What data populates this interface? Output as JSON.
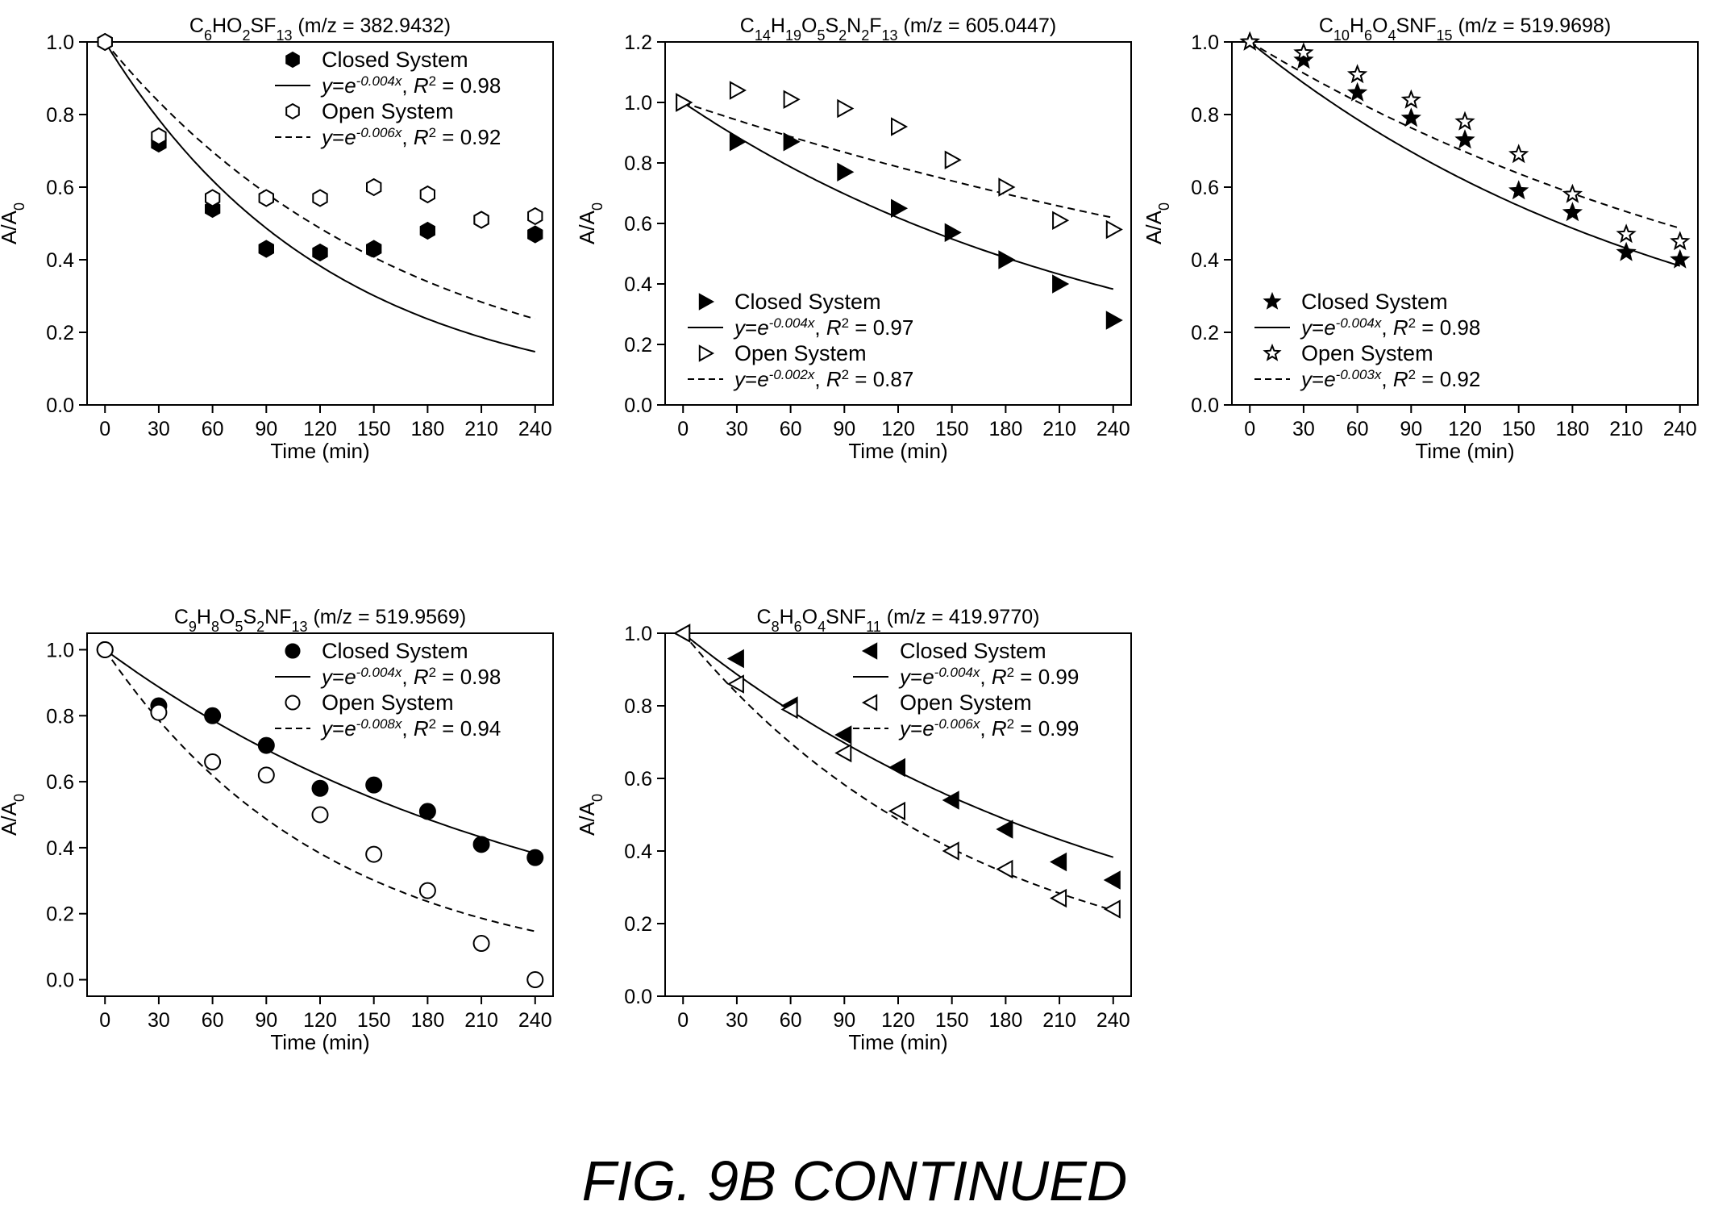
{
  "figure_caption": "FIG. 9B CONTINUED",
  "chart_data": [
    {
      "type": "scatter",
      "title": "C6HO2SF13 (m/z = 382.9432)",
      "title_parts": [
        [
          "C",
          ""
        ],
        [
          "6",
          "sub"
        ],
        [
          "HO",
          ""
        ],
        [
          "2",
          "sub"
        ],
        [
          "SF",
          ""
        ],
        [
          "13",
          "sub"
        ],
        [
          " (m/z = 382.9432)",
          ""
        ]
      ],
      "xlabel": "Time (min)",
      "ylabel": "A/A0",
      "xlim": [
        -10,
        250
      ],
      "ylim": [
        0,
        1.0
      ],
      "xticks": [
        0,
        30,
        60,
        90,
        120,
        150,
        180,
        210,
        240
      ],
      "yticks": [
        0.0,
        0.2,
        0.4,
        0.6,
        0.8,
        1.0
      ],
      "ytick_labels": [
        "0.0",
        "0.2",
        "0.4",
        "0.6",
        "0.8",
        "1.0"
      ],
      "legend_position": "top-right",
      "series": [
        {
          "name": "Closed System",
          "marker": "hexagon",
          "filled": true,
          "x": [
            0,
            30,
            60,
            90,
            120,
            150,
            180,
            210,
            240
          ],
          "y": [
            1.0,
            0.72,
            0.54,
            0.43,
            0.42,
            0.43,
            0.48,
            0.51,
            0.47
          ]
        },
        {
          "name": "Open System",
          "marker": "hexagon",
          "filled": false,
          "x": [
            0,
            30,
            60,
            90,
            120,
            150,
            180,
            210,
            240
          ],
          "y": [
            1.0,
            0.74,
            0.57,
            0.57,
            0.57,
            0.6,
            0.58,
            0.51,
            0.52
          ]
        }
      ],
      "fits": [
        {
          "k": 0.008,
          "dash": false,
          "exponent_label": "-0.004x",
          "r2_text": "= 0.98"
        },
        {
          "k": 0.006,
          "dash": true,
          "exponent_label": "-0.006x",
          "r2_text": "= 0.92"
        }
      ]
    },
    {
      "type": "scatter",
      "title": "C14H19O5S2N2F13 (m/z = 605.0447)",
      "title_parts": [
        [
          "C",
          ""
        ],
        [
          "14",
          "sub"
        ],
        [
          "H",
          ""
        ],
        [
          "19",
          "sub"
        ],
        [
          "O",
          ""
        ],
        [
          "5",
          "sub"
        ],
        [
          "S",
          ""
        ],
        [
          "2",
          "sub"
        ],
        [
          "N",
          ""
        ],
        [
          "2",
          "sub"
        ],
        [
          "F",
          ""
        ],
        [
          "13",
          "sub"
        ],
        [
          " (m/z = 605.0447)",
          ""
        ]
      ],
      "xlabel": "Time (min)",
      "ylabel": "A/A0",
      "xlim": [
        -10,
        250
      ],
      "ylim": [
        0,
        1.2
      ],
      "xticks": [
        0,
        30,
        60,
        90,
        120,
        150,
        180,
        210,
        240
      ],
      "yticks": [
        0.0,
        0.2,
        0.4,
        0.6,
        0.8,
        1.0,
        1.2
      ],
      "ytick_labels": [
        "0.0",
        "0.2",
        "0.4",
        "0.6",
        "0.8",
        "1.0",
        "1.2"
      ],
      "legend_position": "bottom-left",
      "series": [
        {
          "name": "Closed System",
          "marker": "triangle-right",
          "filled": true,
          "x": [
            0,
            30,
            60,
            90,
            120,
            150,
            180,
            210,
            240
          ],
          "y": [
            1.0,
            0.87,
            0.87,
            0.77,
            0.65,
            0.57,
            0.48,
            0.4,
            0.28
          ]
        },
        {
          "name": "Open System",
          "marker": "triangle-right",
          "filled": false,
          "x": [
            0,
            30,
            60,
            90,
            120,
            150,
            180,
            210,
            240
          ],
          "y": [
            1.0,
            1.04,
            1.01,
            0.98,
            0.92,
            0.81,
            0.72,
            0.61,
            0.58
          ]
        }
      ],
      "fits": [
        {
          "k": 0.004,
          "dash": false,
          "exponent_label": "-0.004x",
          "r2_text": "= 0.97"
        },
        {
          "k": 0.002,
          "dash": true,
          "exponent_label": "-0.002x",
          "r2_text": "= 0.87"
        }
      ]
    },
    {
      "type": "scatter",
      "title": "C10H6O4SNF15 (m/z = 519.9698)",
      "title_parts": [
        [
          "C",
          ""
        ],
        [
          "10",
          "sub"
        ],
        [
          "H",
          ""
        ],
        [
          "6",
          "sub"
        ],
        [
          "O",
          ""
        ],
        [
          "4",
          "sub"
        ],
        [
          "SNF",
          ""
        ],
        [
          "15",
          "sub"
        ],
        [
          " (m/z = 519.9698)",
          ""
        ]
      ],
      "xlabel": "Time (min)",
      "ylabel": "A/A0",
      "xlim": [
        -10,
        250
      ],
      "ylim": [
        0,
        1.0
      ],
      "xticks": [
        0,
        30,
        60,
        90,
        120,
        150,
        180,
        210,
        240
      ],
      "yticks": [
        0.0,
        0.2,
        0.4,
        0.6,
        0.8,
        1.0
      ],
      "ytick_labels": [
        "0.0",
        "0.2",
        "0.4",
        "0.6",
        "0.8",
        "1.0"
      ],
      "legend_position": "bottom-left",
      "series": [
        {
          "name": "Closed System",
          "marker": "star",
          "filled": true,
          "x": [
            0,
            30,
            60,
            90,
            120,
            150,
            180,
            210,
            240
          ],
          "y": [
            1.0,
            0.95,
            0.86,
            0.79,
            0.73,
            0.59,
            0.53,
            0.42,
            0.4
          ]
        },
        {
          "name": "Open System",
          "marker": "star",
          "filled": false,
          "x": [
            0,
            30,
            60,
            90,
            120,
            150,
            180,
            210,
            240
          ],
          "y": [
            1.0,
            0.97,
            0.91,
            0.84,
            0.78,
            0.69,
            0.58,
            0.47,
            0.45
          ]
        }
      ],
      "fits": [
        {
          "k": 0.004,
          "dash": false,
          "exponent_label": "-0.004x",
          "r2_text": "= 0.98"
        },
        {
          "k": 0.003,
          "dash": true,
          "exponent_label": "-0.003x",
          "r2_text": "= 0.92"
        }
      ]
    },
    {
      "type": "scatter",
      "title": "C9H8O5S2NF13 (m/z = 519.9569)",
      "title_parts": [
        [
          "C",
          ""
        ],
        [
          "9",
          "sub"
        ],
        [
          "H",
          ""
        ],
        [
          "8",
          "sub"
        ],
        [
          "O",
          ""
        ],
        [
          "5",
          "sub"
        ],
        [
          "S",
          ""
        ],
        [
          "2",
          "sub"
        ],
        [
          "NF",
          ""
        ],
        [
          "13",
          "sub"
        ],
        [
          " (m/z = 519.9569)",
          ""
        ]
      ],
      "xlabel": "Time (min)",
      "ylabel": "A/A0",
      "xlim": [
        -10,
        250
      ],
      "ylim": [
        -0.05,
        1.05
      ],
      "xticks": [
        0,
        30,
        60,
        90,
        120,
        150,
        180,
        210,
        240
      ],
      "yticks": [
        0.0,
        0.2,
        0.4,
        0.6,
        0.8,
        1.0
      ],
      "ytick_labels": [
        "0.0",
        "0.2",
        "0.4",
        "0.6",
        "0.8",
        "1.0"
      ],
      "legend_position": "top-right",
      "series": [
        {
          "name": "Closed System",
          "marker": "circle",
          "filled": true,
          "x": [
            0,
            30,
            60,
            90,
            120,
            150,
            180,
            210,
            240
          ],
          "y": [
            1.0,
            0.83,
            0.8,
            0.71,
            0.58,
            0.59,
            0.51,
            0.41,
            0.37
          ]
        },
        {
          "name": "Open System",
          "marker": "circle",
          "filled": false,
          "x": [
            0,
            30,
            60,
            90,
            120,
            150,
            180,
            210,
            240
          ],
          "y": [
            1.0,
            0.81,
            0.66,
            0.62,
            0.5,
            0.38,
            0.27,
            0.11,
            0.0
          ]
        }
      ],
      "fits": [
        {
          "k": 0.004,
          "dash": false,
          "exponent_label": "-0.004x",
          "r2_text": "= 0.98"
        },
        {
          "k": 0.008,
          "dash": true,
          "exponent_label": "-0.008x",
          "r2_text": "= 0.94"
        }
      ]
    },
    {
      "type": "scatter",
      "title": "C8H6O4SNF11 (m/z = 419.9770)",
      "title_parts": [
        [
          "C",
          ""
        ],
        [
          "8",
          "sub"
        ],
        [
          "H",
          ""
        ],
        [
          "6",
          "sub"
        ],
        [
          "O",
          ""
        ],
        [
          "4",
          "sub"
        ],
        [
          "SNF",
          ""
        ],
        [
          "11",
          "sub"
        ],
        [
          " (m/z = 419.9770)",
          ""
        ]
      ],
      "xlabel": "Time (min)",
      "ylabel": "A/A0",
      "xlim": [
        -10,
        250
      ],
      "ylim": [
        0,
        1.0
      ],
      "xticks": [
        0,
        30,
        60,
        90,
        120,
        150,
        180,
        210,
        240
      ],
      "yticks": [
        0.0,
        0.2,
        0.4,
        0.6,
        0.8,
        1.0
      ],
      "ytick_labels": [
        "0.0",
        "0.2",
        "0.4",
        "0.6",
        "0.8",
        "1.0"
      ],
      "legend_position": "top-right",
      "series": [
        {
          "name": "Closed System",
          "marker": "triangle-left",
          "filled": true,
          "x": [
            0,
            30,
            60,
            90,
            120,
            150,
            180,
            210,
            240
          ],
          "y": [
            1.0,
            0.93,
            0.8,
            0.72,
            0.63,
            0.54,
            0.46,
            0.37,
            0.32
          ]
        },
        {
          "name": "Open System",
          "marker": "triangle-left",
          "filled": false,
          "x": [
            0,
            30,
            60,
            90,
            120,
            150,
            180,
            210,
            240
          ],
          "y": [
            1.0,
            0.86,
            0.79,
            0.67,
            0.51,
            0.4,
            0.35,
            0.27,
            0.24
          ]
        }
      ],
      "fits": [
        {
          "k": 0.004,
          "dash": false,
          "exponent_label": "-0.004x",
          "r2_text": "= 0.99"
        },
        {
          "k": 0.006,
          "dash": true,
          "exponent_label": "-0.006x",
          "r2_text": "= 0.99"
        }
      ]
    }
  ]
}
